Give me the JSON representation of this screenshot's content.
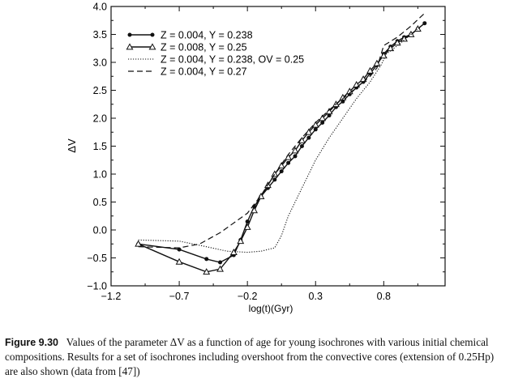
{
  "chart_data": {
    "type": "line",
    "xlabel": "log(t)(Gyr)",
    "ylabel": "ΔV",
    "xlim": [
      -1.2,
      1.25
    ],
    "ylim": [
      -1.0,
      4.0
    ],
    "xticks": [
      "−1.2",
      "−0.7",
      "−0.2",
      "0.3",
      "0.8"
    ],
    "xtick_values": [
      -1.2,
      -0.7,
      -0.2,
      0.3,
      0.8
    ],
    "yticks": [
      "−1.0",
      "−0.5",
      "0.0",
      "0.5",
      "1.0",
      "1.5",
      "2.0",
      "2.5",
      "3.0",
      "3.5",
      "4.0"
    ],
    "ytick_values": [
      -1.0,
      -0.5,
      0.0,
      0.5,
      1.0,
      1.5,
      2.0,
      2.5,
      3.0,
      3.5,
      4.0
    ],
    "legend_position": "top-left",
    "grid": false,
    "series": [
      {
        "name": "Z = 0.004, Y = 0.238",
        "style": "solid-dot",
        "x": [
          -1.0,
          -0.7,
          -0.5,
          -0.4,
          -0.3,
          -0.25,
          -0.2,
          -0.15,
          -0.1,
          -0.05,
          0.0,
          0.05,
          0.1,
          0.15,
          0.2,
          0.25,
          0.3,
          0.35,
          0.4,
          0.45,
          0.5,
          0.55,
          0.6,
          0.65,
          0.7,
          0.75,
          0.8,
          0.85,
          0.9,
          0.95,
          1.0,
          1.05,
          1.1
        ],
        "y": [
          -0.25,
          -0.35,
          -0.52,
          -0.58,
          -0.45,
          -0.18,
          0.15,
          0.42,
          0.6,
          0.75,
          0.9,
          1.05,
          1.2,
          1.32,
          1.5,
          1.65,
          1.8,
          1.92,
          2.05,
          2.2,
          2.3,
          2.43,
          2.55,
          2.65,
          2.8,
          2.95,
          3.15,
          3.28,
          3.38,
          3.45,
          3.5,
          3.6,
          3.7
        ]
      },
      {
        "name": "Z = 0.008, Y = 0.25",
        "style": "solid-triangle",
        "x": [
          -1.0,
          -0.7,
          -0.5,
          -0.4,
          -0.3,
          -0.25,
          -0.2,
          -0.15,
          -0.1,
          -0.05,
          0.0,
          0.05,
          0.1,
          0.15,
          0.2,
          0.25,
          0.3,
          0.35,
          0.4,
          0.45,
          0.5,
          0.55,
          0.6,
          0.65,
          0.7,
          0.75,
          0.8,
          0.85,
          0.9,
          0.95,
          1.0,
          1.05
        ],
        "y": [
          -0.25,
          -0.57,
          -0.75,
          -0.7,
          -0.4,
          -0.2,
          0.05,
          0.35,
          0.6,
          0.8,
          1.0,
          1.15,
          1.3,
          1.42,
          1.6,
          1.75,
          1.88,
          2.0,
          2.12,
          2.25,
          2.37,
          2.48,
          2.6,
          2.7,
          2.85,
          2.98,
          3.12,
          3.25,
          3.35,
          3.42,
          3.5,
          3.6
        ]
      },
      {
        "name": "Z = 0.004, Y = 0.238, OV = 0.25",
        "style": "dotted",
        "x": [
          -1.0,
          -0.7,
          -0.5,
          -0.35,
          -0.2,
          -0.1,
          0.0,
          0.05,
          0.1,
          0.2,
          0.3,
          0.4,
          0.5,
          0.6,
          0.7,
          0.78,
          0.82,
          0.9,
          1.0,
          1.1
        ],
        "y": [
          -0.18,
          -0.2,
          -0.3,
          -0.38,
          -0.4,
          -0.38,
          -0.32,
          -0.1,
          0.25,
          0.75,
          1.25,
          1.65,
          2.0,
          2.35,
          2.65,
          2.95,
          3.15,
          3.3,
          3.5,
          3.7
        ]
      },
      {
        "name": "Z = 0.004, Y = 0.27",
        "style": "dashed",
        "x": [
          -1.0,
          -0.7,
          -0.55,
          -0.4,
          -0.2,
          -0.1,
          0.0,
          0.1,
          0.2,
          0.3,
          0.4,
          0.5,
          0.6,
          0.7,
          0.75,
          0.8,
          0.9,
          1.0,
          1.1
        ],
        "y": [
          -0.3,
          -0.32,
          -0.25,
          -0.05,
          0.3,
          0.62,
          1.0,
          1.35,
          1.65,
          1.92,
          2.15,
          2.35,
          2.55,
          2.75,
          2.9,
          3.3,
          3.45,
          3.65,
          3.88
        ]
      }
    ]
  },
  "caption": {
    "figure_label": "Figure 9.30",
    "text": "Values of the parameter ΔV as a function of age for young isochrones with various initial chemical compositions. Results for a set of isochrones including overshoot from the convective cores (extension of 0.25Hp) are also shown (data from [47])"
  }
}
